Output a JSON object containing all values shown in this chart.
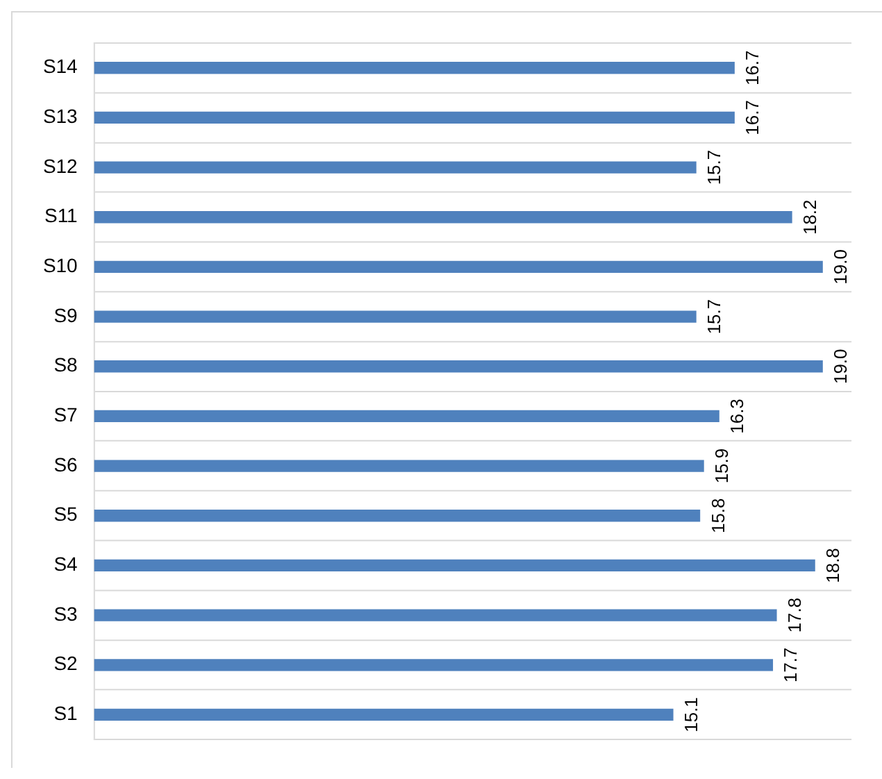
{
  "chart_data": {
    "type": "bar",
    "orientation": "horizontal",
    "categories": [
      "S14",
      "S13",
      "S12",
      "S11",
      "S10",
      "S9",
      "S8",
      "S7",
      "S6",
      "S5",
      "S4",
      "S3",
      "S2",
      "S1"
    ],
    "values": [
      16.7,
      16.7,
      15.7,
      18.2,
      19.0,
      15.7,
      19.0,
      16.3,
      15.9,
      15.8,
      18.8,
      17.8,
      17.7,
      15.1
    ],
    "value_labels": [
      "16.7",
      "16.7",
      "15.7",
      "18.2",
      "19.0",
      "15.7",
      "19.0",
      "16.3",
      "15.9",
      "15.8",
      "18.8",
      "17.8",
      "17.7",
      "15.1"
    ],
    "color": "#4f81bd",
    "grid": "y",
    "legend": false,
    "tick_labels": "y"
  }
}
